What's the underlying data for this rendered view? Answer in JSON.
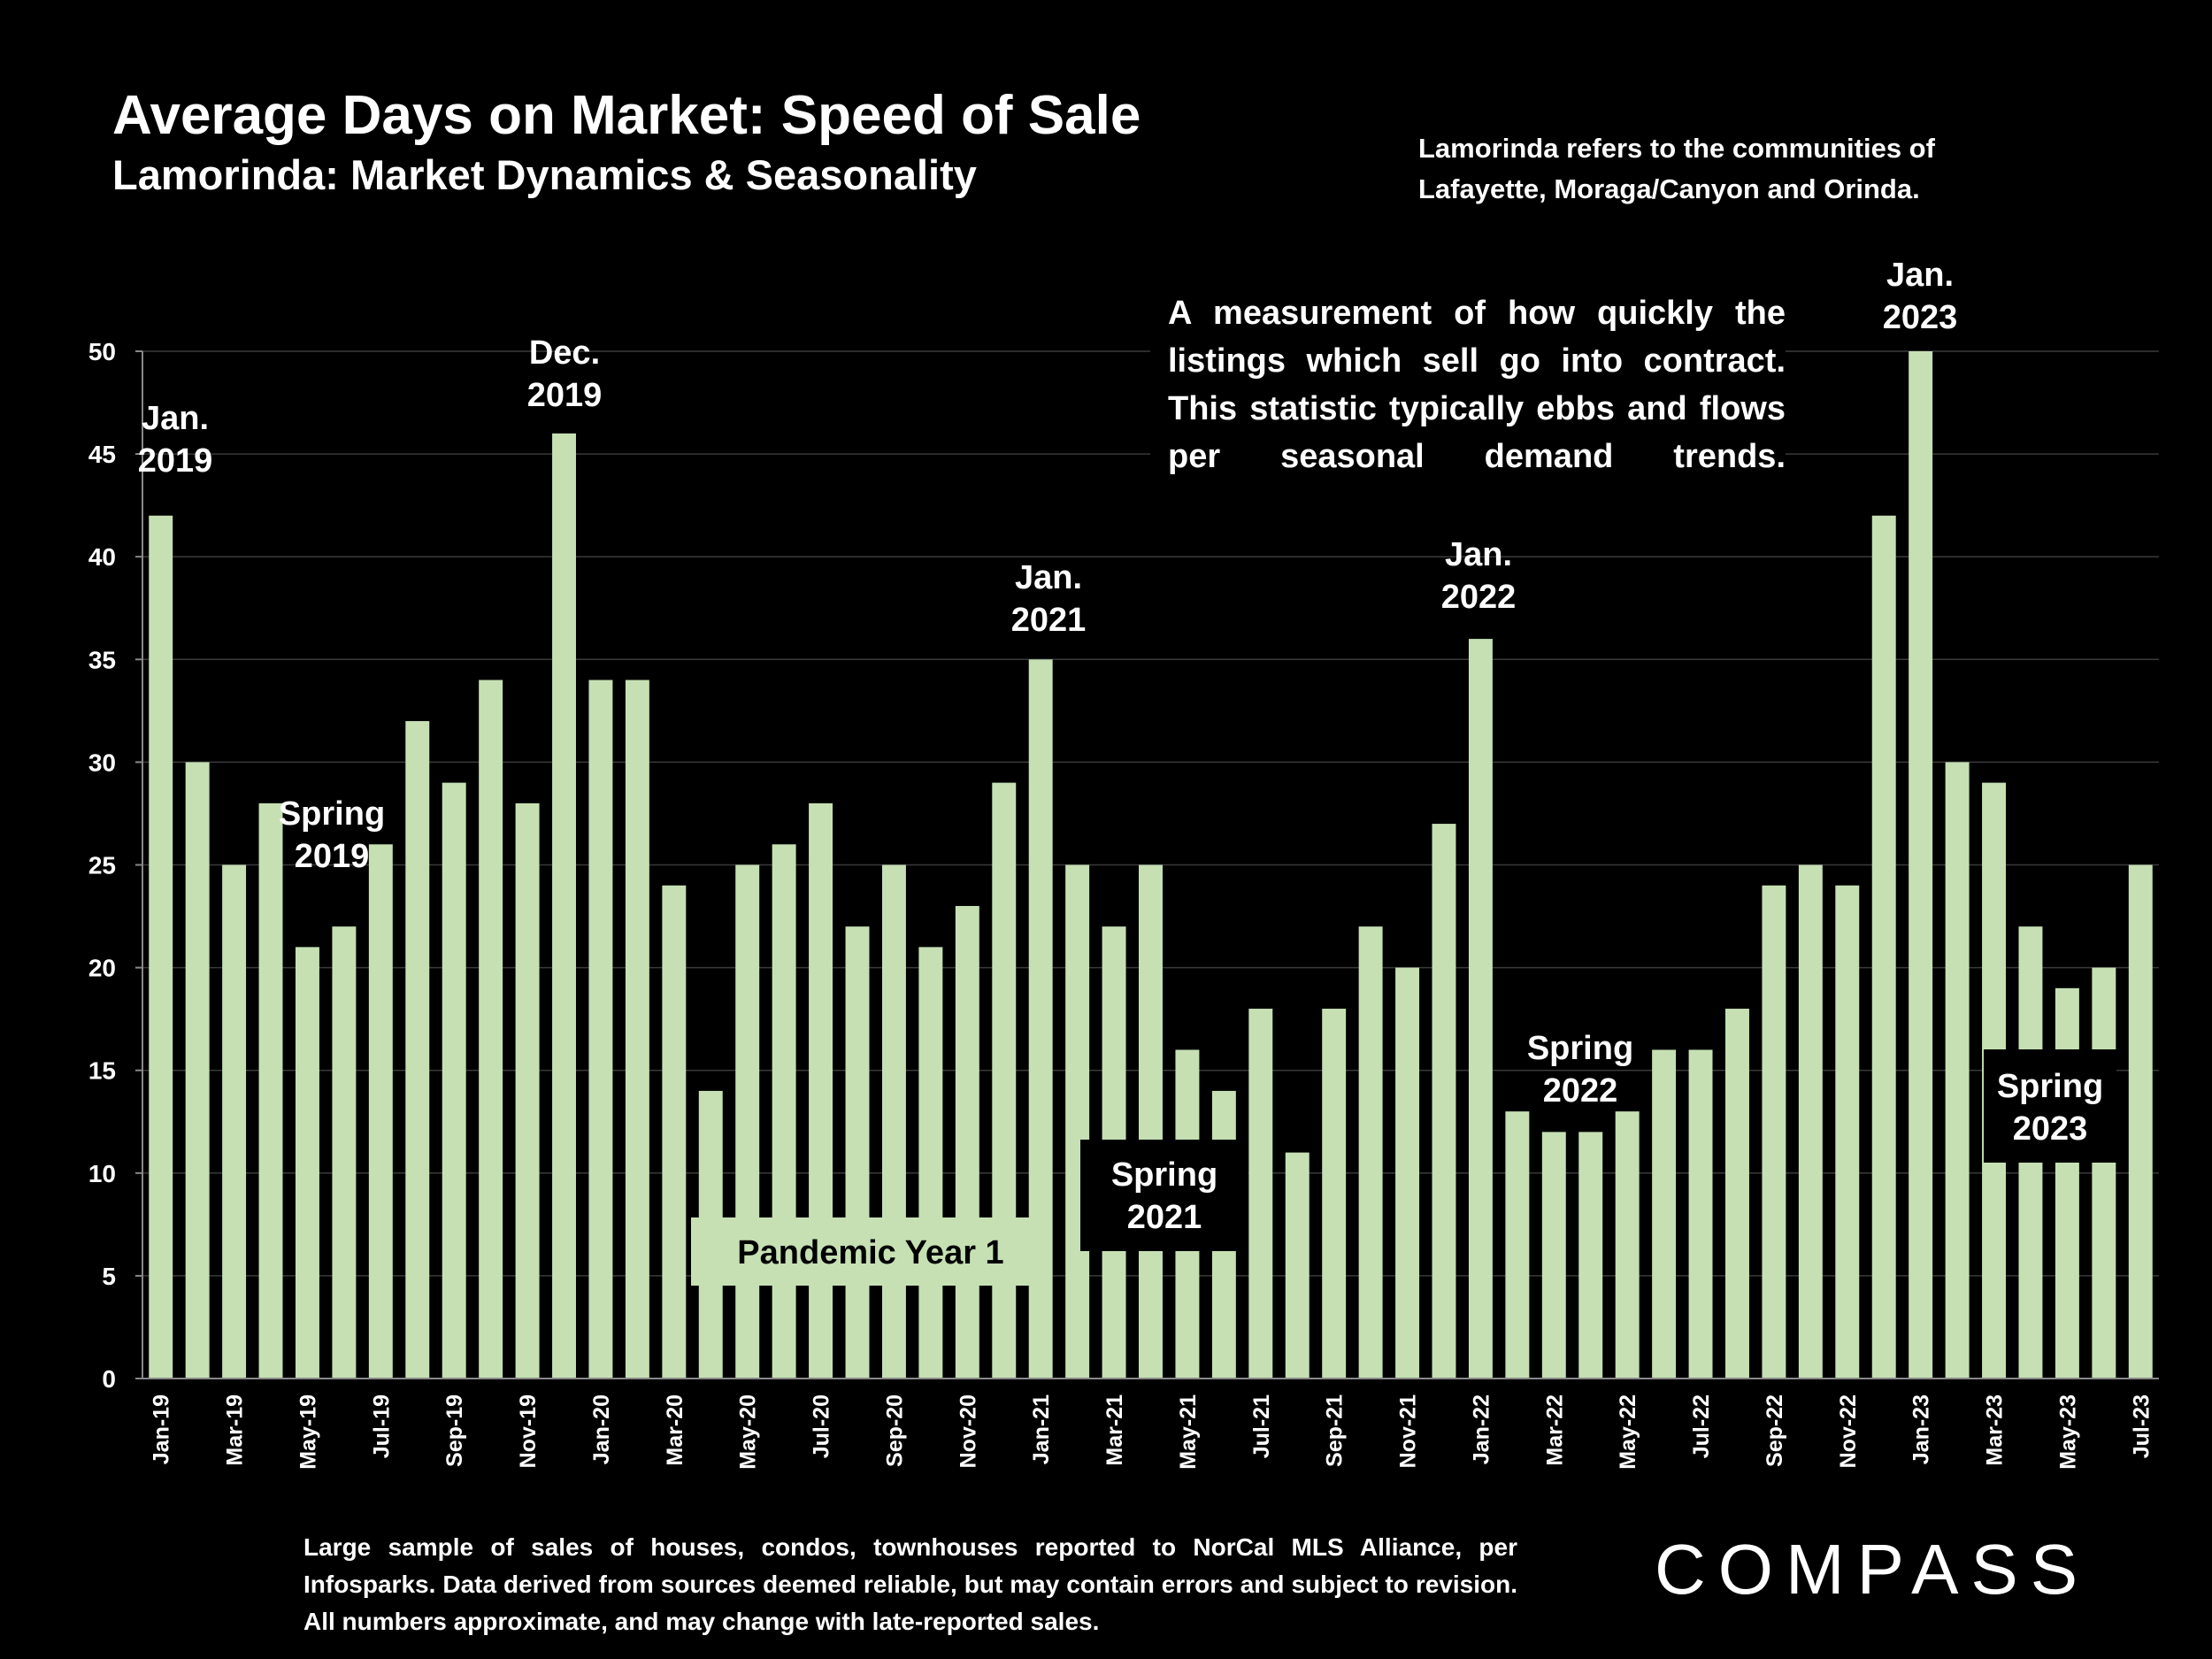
{
  "header": {
    "title": "Average Days on Market:  Speed of Sale",
    "subtitle": "Lamorinda: Market Dynamics & Seasonality",
    "note_line1": "Lamorinda refers to the communities of",
    "note_line2": "Lafayette, Moraga/Canyon and Orinda."
  },
  "description": "A measurement of how quickly the listings which sell go into contract. This statistic typically ebbs and flows per seasonal demand trends.",
  "footer": "Large sample of sales of houses, condos, townhouses reported to NorCal MLS Alliance, per Infosparks. Data derived from sources deemed reliable, but may contain errors and subject to revision. All numbers approximate, and may change with late-reported sales.",
  "logo": "COMPASS",
  "colors": {
    "bar": "#c6e0b4",
    "background": "#000000",
    "grid": "#3a3a3a"
  },
  "annotations": {
    "jan2019": [
      "Jan.",
      "2019"
    ],
    "spring2019": [
      "Spring",
      "2019"
    ],
    "dec2019": [
      "Dec.",
      "2019"
    ],
    "jan2021": [
      "Jan.",
      "2021"
    ],
    "pandemic": "Pandemic Year 1",
    "spring2021": [
      "Spring",
      "2021"
    ],
    "jan2022": [
      "Jan.",
      "2022"
    ],
    "spring2022": [
      "Spring",
      "2022"
    ],
    "jan2023": [
      "Jan.",
      "2023"
    ],
    "spring2023": [
      "Spring",
      "2023"
    ]
  },
  "chart_data": {
    "type": "bar",
    "title": "Average Days on Market:  Speed of Sale",
    "xlabel": "",
    "ylabel": "",
    "ylim": [
      0,
      50
    ],
    "yticks": [
      0,
      5,
      10,
      15,
      20,
      25,
      30,
      35,
      40,
      45,
      50
    ],
    "grid": true,
    "categories": [
      "Jan-19",
      "Feb-19",
      "Mar-19",
      "Apr-19",
      "May-19",
      "Jun-19",
      "Jul-19",
      "Aug-19",
      "Sep-19",
      "Oct-19",
      "Nov-19",
      "Dec-19",
      "Jan-20",
      "Feb-20",
      "Mar-20",
      "Apr-20",
      "May-20",
      "Jun-20",
      "Jul-20",
      "Aug-20",
      "Sep-20",
      "Oct-20",
      "Nov-20",
      "Dec-20",
      "Jan-21",
      "Feb-21",
      "Mar-21",
      "Apr-21",
      "May-21",
      "Jun-21",
      "Jul-21",
      "Aug-21",
      "Sep-21",
      "Oct-21",
      "Nov-21",
      "Dec-21",
      "Jan-22",
      "Feb-22",
      "Mar-22",
      "Apr-22",
      "May-22",
      "Jun-22",
      "Jul-22",
      "Aug-22",
      "Sep-22",
      "Oct-22",
      "Nov-22",
      "Dec-22",
      "Jan-23",
      "Feb-23",
      "Mar-23",
      "Apr-23",
      "May-23",
      "Jun-23",
      "Jul-23"
    ],
    "values": [
      42,
      30,
      25,
      28,
      21,
      22,
      26,
      32,
      29,
      34,
      28,
      46,
      34,
      34,
      24,
      14,
      25,
      26,
      28,
      22,
      25,
      21,
      23,
      29,
      35,
      25,
      22,
      25,
      16,
      14,
      18,
      11,
      18,
      22,
      20,
      27,
      36,
      13,
      12,
      12,
      13,
      16,
      16,
      18,
      24,
      25,
      24,
      42,
      50,
      30,
      29,
      22,
      19,
      20,
      25
    ]
  }
}
